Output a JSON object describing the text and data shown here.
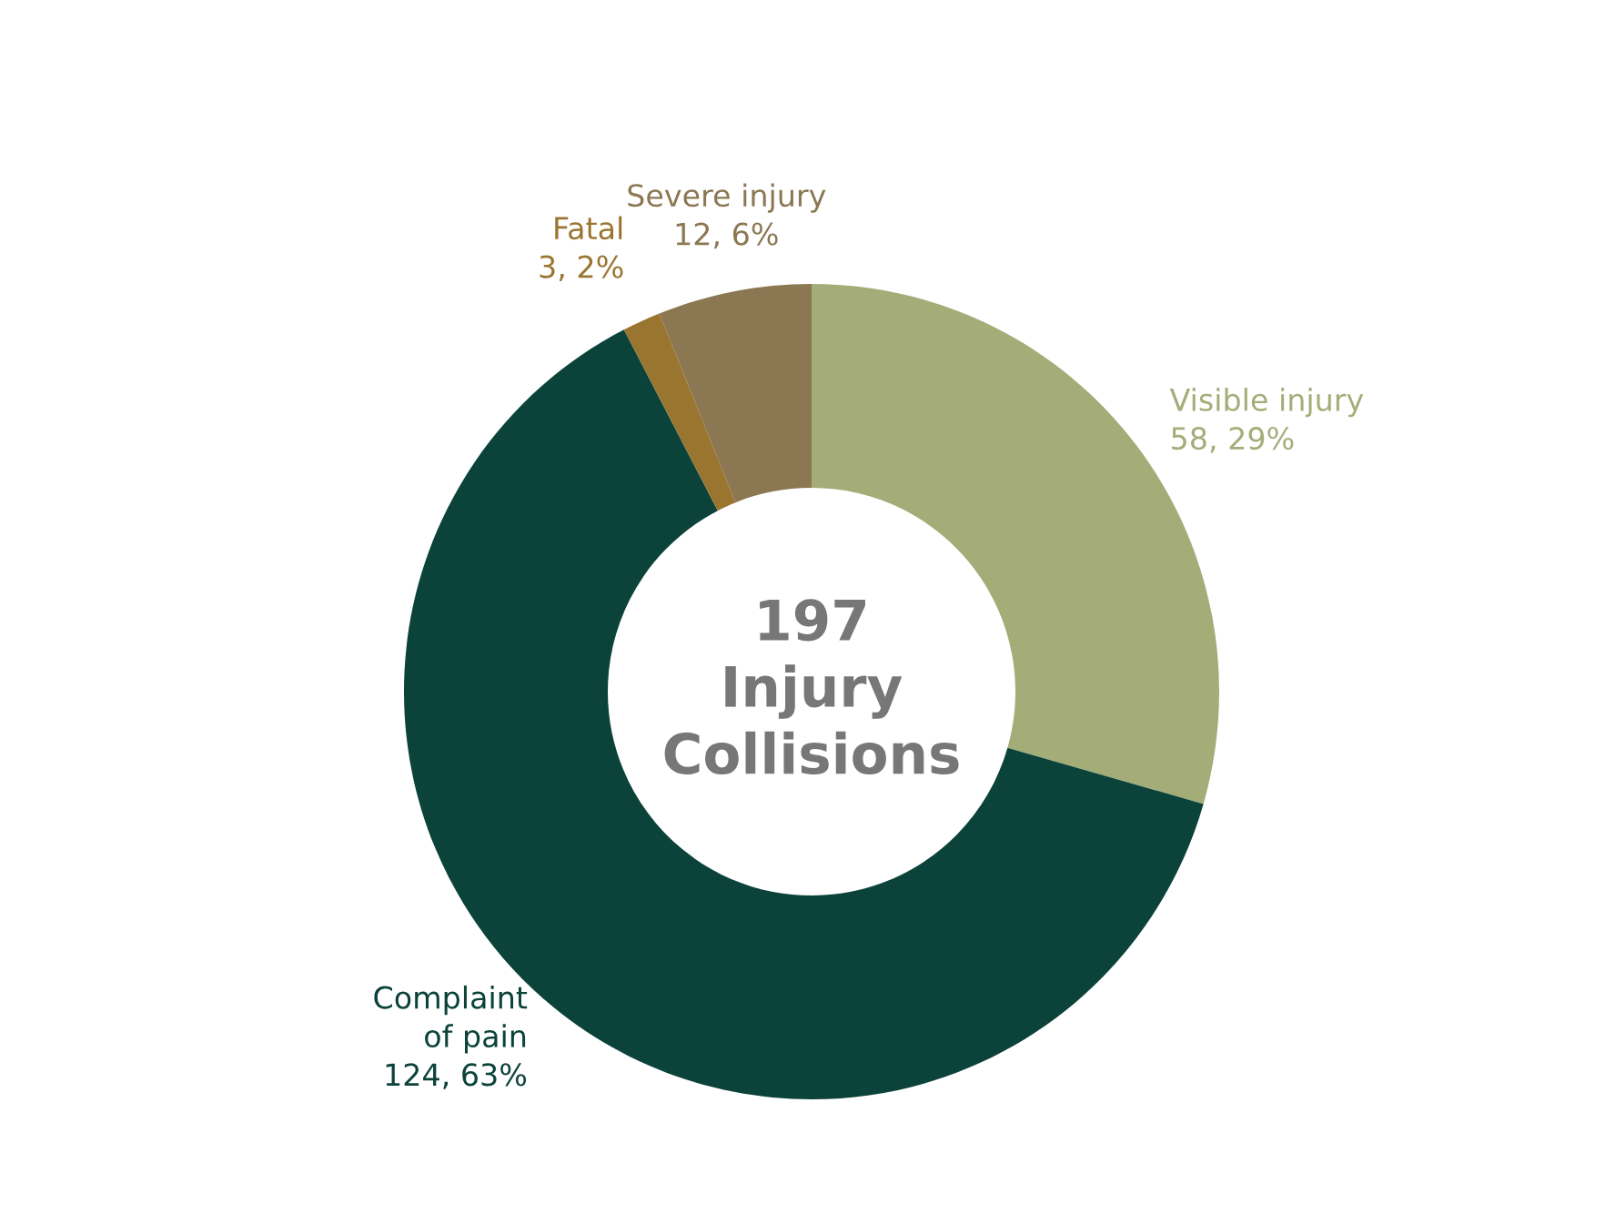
{
  "chart_data": {
    "type": "donut",
    "categories": [
      "Visible injury",
      "Complaint\nof pain",
      "Fatal",
      "Severe injury"
    ],
    "values": [
      58,
      124,
      3,
      12
    ],
    "value_labels": [
      "58, 29%",
      "124, 63%",
      "3, 2%",
      "12, 6%"
    ],
    "colors": [
      "#a4ad78",
      "#0b433a",
      "#9a7530",
      "#8b7752"
    ],
    "annotations": [
      "197\nInjury\nCollisions"
    ]
  }
}
